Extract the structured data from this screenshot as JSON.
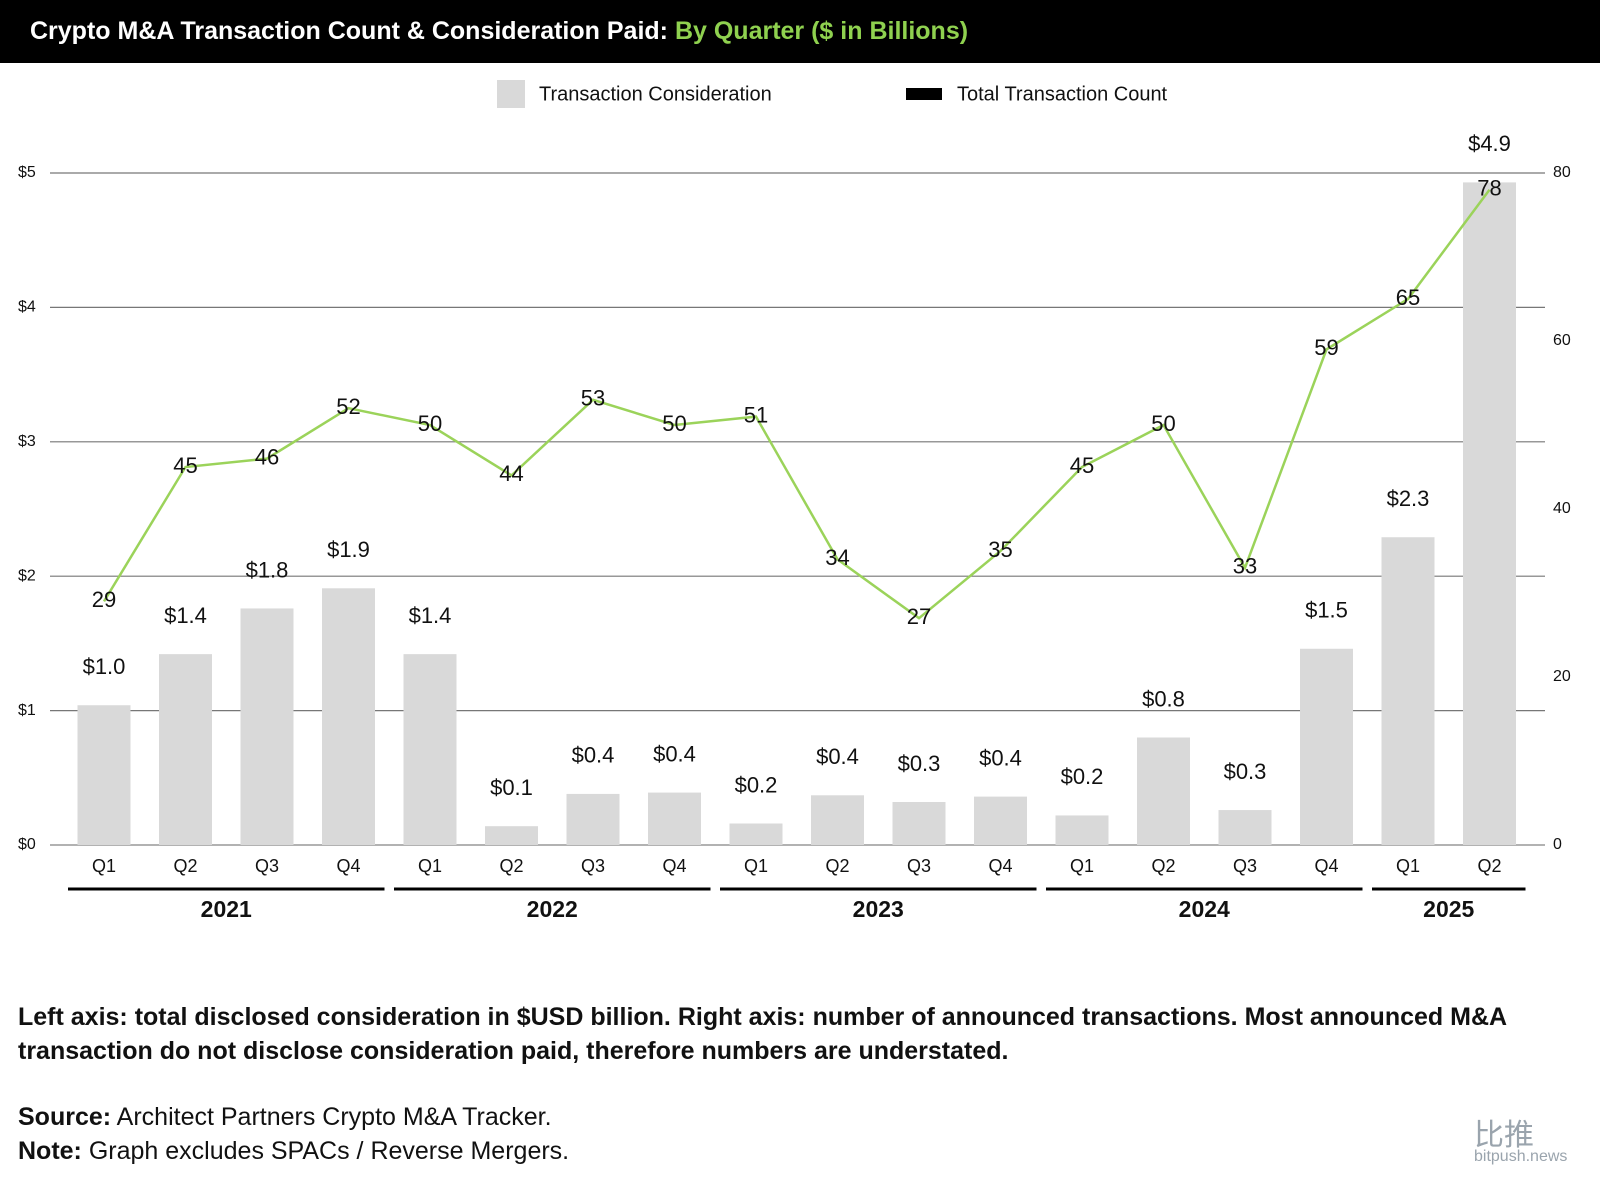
{
  "chart_data": {
    "type": "bar-line",
    "title": "Crypto M&A Transaction Count & Consideration Paid:",
    "title_highlight": "By Quarter ($ in Billions)",
    "groups": [
      {
        "label": "2021",
        "categories": [
          "Q1",
          "Q2",
          "Q3",
          "Q4"
        ]
      },
      {
        "label": "2022",
        "categories": [
          "Q1",
          "Q2",
          "Q3",
          "Q4"
        ]
      },
      {
        "label": "2023",
        "categories": [
          "Q1",
          "Q2",
          "Q3",
          "Q4"
        ]
      },
      {
        "label": "2024",
        "categories": [
          "Q1",
          "Q2",
          "Q3",
          "Q4"
        ]
      },
      {
        "label": "2025",
        "categories": [
          "Q1",
          "Q2"
        ]
      }
    ],
    "series": [
      {
        "name": "Transaction Consideration",
        "type": "bar",
        "color": "#d9d9d9",
        "values": [
          1.04,
          1.42,
          1.76,
          1.91,
          1.42,
          0.14,
          0.38,
          0.39,
          0.16,
          0.37,
          0.32,
          0.36,
          0.22,
          0.8,
          0.26,
          1.46,
          2.29,
          4.93
        ],
        "value_labels": [
          "$1.0",
          "$1.4",
          "$1.8",
          "$1.9",
          "$1.4",
          "$0.1",
          "$0.4",
          "$0.4",
          "$0.2",
          "$0.4",
          "$0.3",
          "$0.4",
          "$0.2",
          "$0.8",
          "$0.3",
          "$1.5",
          "$2.3",
          "$4.9"
        ]
      },
      {
        "name": "Total Transaction Count",
        "type": "line",
        "axis": "y2",
        "color": "#9bd35a",
        "legend_color": "#000000",
        "values": [
          29,
          45,
          46,
          52,
          50,
          44,
          53,
          50,
          51,
          34,
          27,
          35,
          45,
          50,
          33,
          59,
          65,
          78
        ]
      }
    ],
    "ylim": [
      0,
      5
    ],
    "yticks": [
      {
        "value": 0,
        "label": "$0"
      },
      {
        "value": 1,
        "label": "$1"
      },
      {
        "value": 2,
        "label": "$2"
      },
      {
        "value": 3,
        "label": "$3"
      },
      {
        "value": 4,
        "label": "$4"
      },
      {
        "value": 5,
        "label": "$5"
      }
    ],
    "y2lim": [
      0,
      80
    ],
    "y2ticks": [
      0,
      20,
      40,
      60,
      80
    ],
    "grid": true,
    "legend": "top",
    "footnote": "Left axis: total disclosed consideration in $USD billion. Right axis: number of announced transactions. Most announced M&A transaction do not disclose consideration paid, therefore numbers are understated.",
    "source_label": "Source:",
    "source": "Architect Partners Crypto M&A Tracker.",
    "note_label": "Note:",
    "note": "Graph excludes SPACs / Reverse Mergers.",
    "watermark": "比推",
    "watermark_url": "bitpush.news"
  }
}
